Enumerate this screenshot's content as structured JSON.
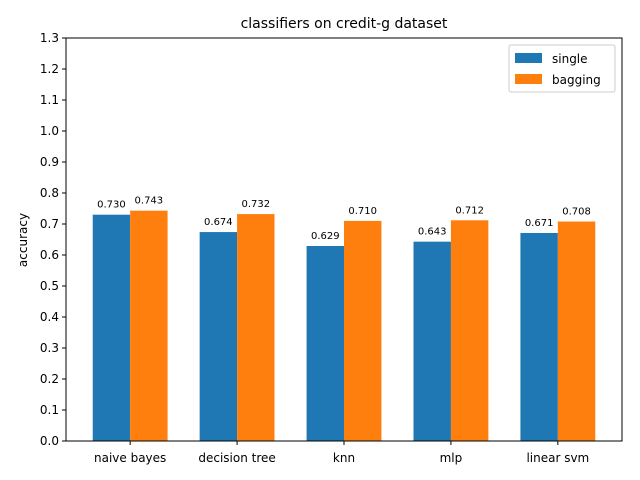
{
  "chart_data": {
    "type": "bar",
    "title": "classifiers on credit-g dataset",
    "xlabel": "",
    "ylabel": "accuracy",
    "ylim": [
      0,
      1.3
    ],
    "yticks": [
      "0.0",
      "0.1",
      "0.2",
      "0.3",
      "0.4",
      "0.5",
      "0.6",
      "0.7",
      "0.8",
      "0.9",
      "1.0",
      "1.1",
      "1.2",
      "1.3"
    ],
    "grid": false,
    "legend_position": "top-right",
    "categories": [
      "naive bayes",
      "decision tree",
      "knn",
      "mlp",
      "linear svm"
    ],
    "series": [
      {
        "name": "single",
        "color": "#1f77b4",
        "values": [
          0.73,
          0.674,
          0.629,
          0.643,
          0.671
        ],
        "labels": [
          "0.730",
          "0.674",
          "0.629",
          "0.643",
          "0.671"
        ]
      },
      {
        "name": "bagging",
        "color": "#ff7f0e",
        "values": [
          0.743,
          0.732,
          0.71,
          0.712,
          0.708
        ],
        "labels": [
          "0.743",
          "0.732",
          "0.710",
          "0.712",
          "0.708"
        ]
      }
    ]
  }
}
